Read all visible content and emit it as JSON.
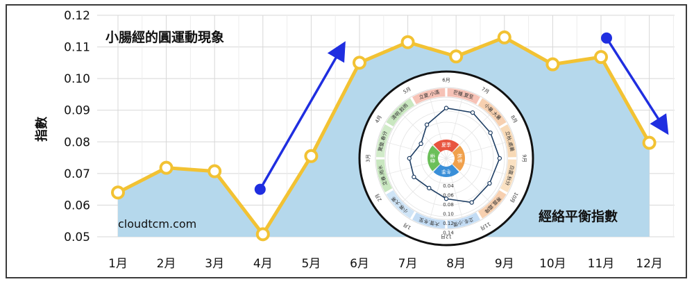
{
  "chart_data": {
    "type": "area",
    "title": "小腸經的圓運動現象",
    "ylabel": "指數",
    "categories": [
      "1月",
      "2月",
      "3月",
      "4月",
      "5月",
      "6月",
      "7月",
      "8月",
      "9月",
      "10月",
      "11月",
      "12月"
    ],
    "values": [
      0.064,
      0.0718,
      0.0707,
      0.0508,
      0.0755,
      0.105,
      0.1115,
      0.107,
      0.113,
      0.1045,
      0.1068,
      0.0797
    ],
    "ylim": [
      0.05,
      0.12
    ],
    "yticks": [
      "0.05",
      "0.06",
      "0.07",
      "0.08",
      "0.09",
      "0.10",
      "0.11",
      "0.12"
    ],
    "grid": true,
    "arrows": [
      {
        "direction": "up",
        "from": {
          "x": "4月",
          "y": 0.065
        },
        "to": {
          "x": "5月+",
          "y": 0.11
        }
      },
      {
        "direction": "down",
        "from": {
          "x": "11月",
          "y": 0.113
        },
        "to": {
          "x": "12月+",
          "y": 0.083
        }
      }
    ],
    "inset": {
      "label": "經絡平衡指數",
      "radial_ticks": [
        "0.04",
        "0.06",
        "0.08",
        "0.10",
        "0.12",
        "0.14"
      ],
      "months": [
        "1月",
        "2月",
        "3月",
        "4月",
        "5月",
        "6月",
        "7月",
        "8月",
        "9月",
        "10月",
        "11月",
        "12月"
      ],
      "solar_terms": [
        "立夏.小滿",
        "芒種.夏至",
        "小暑.大暑",
        "立秋.處暑",
        "白露.秋分",
        "寒露.霜降",
        "立冬.小雪",
        "大雪.冬至",
        "小寒.大寒",
        "立春.雨水",
        "驚蟄.春分",
        "清明.穀雨"
      ],
      "seasons": [
        "夏季",
        "秋季",
        "冬季",
        "春季"
      ]
    },
    "watermark": "cloudtcm.com"
  },
  "colors": {
    "fill": "#b5d8ec",
    "line": "#f2c233",
    "marker_fill": "#ffffff",
    "arrow": "#1f2ee0",
    "grid": "#d7d7d7",
    "radar_line": "#1d3d63",
    "summer": "#e8553f",
    "autumn": "#f0a04b",
    "winter": "#3a8fd8",
    "spring": "#6bbf59"
  }
}
